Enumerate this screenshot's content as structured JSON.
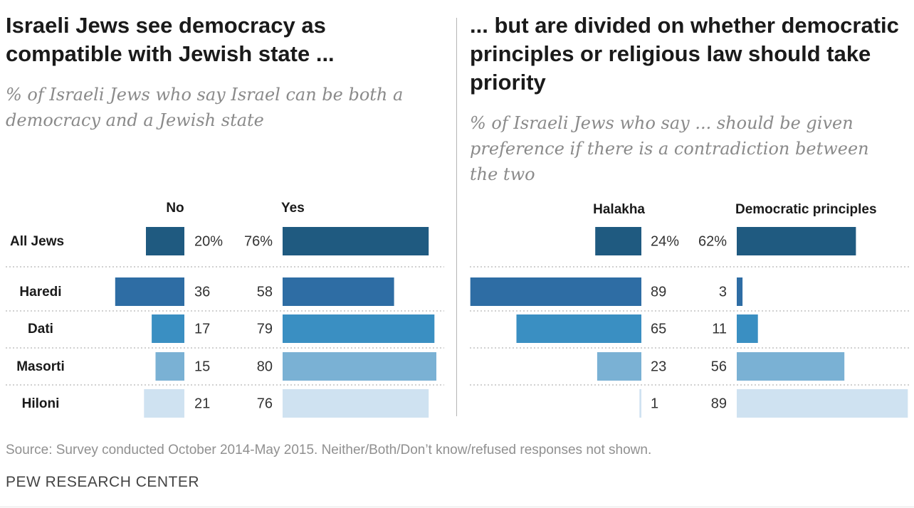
{
  "left_panel": {
    "title": "Israeli Jews see democracy as compatible with Jewish state ...",
    "subtitle": "% of Israeli Jews who say Israel can be both a democracy and a Jewish state"
  },
  "right_panel": {
    "title": "... but are divided on whether democratic principles or religious law should take priority",
    "subtitle": "% of Israeli Jews who say ... should be given preference if there is a contradiction between the two"
  },
  "footer": {
    "source": "Source: Survey conducted October 2014-May 2015. Neither/Both/Don’t know/refused responses not shown.",
    "brand": "PEW RESEARCH CENTER"
  },
  "colors": {
    "all_jews": "#1f5a80",
    "haredi": "#2e6da4",
    "dati": "#3a8fc2",
    "masorti": "#7ab1d4",
    "hiloni": "#cfe2f1"
  },
  "chart_data": [
    {
      "type": "bar",
      "orientation": "horizontal-diverging",
      "categories": [
        "All Jews",
        "Haredi",
        "Dati",
        "Masorti",
        "Hiloni"
      ],
      "series": [
        {
          "name": "No",
          "values": [
            20,
            36,
            17,
            15,
            21
          ]
        },
        {
          "name": "Yes",
          "values": [
            76,
            58,
            79,
            80,
            76
          ]
        }
      ],
      "value_labels": {
        "No": [
          "20%",
          "36",
          "17",
          "15",
          "21"
        ],
        "Yes": [
          "76%",
          "58",
          "79",
          "80",
          "76"
        ]
      }
    },
    {
      "type": "bar",
      "orientation": "horizontal-diverging",
      "categories": [
        "All Jews",
        "Haredi",
        "Dati",
        "Masorti",
        "Hiloni"
      ],
      "series": [
        {
          "name": "Halakha",
          "values": [
            24,
            89,
            65,
            23,
            1
          ]
        },
        {
          "name": "Democratic principles",
          "values": [
            62,
            3,
            11,
            56,
            89
          ]
        }
      ],
      "value_labels": {
        "Halakha": [
          "24%",
          "89",
          "65",
          "23",
          "1"
        ],
        "Democratic principles": [
          "62%",
          "3",
          "11",
          "56",
          "89"
        ]
      }
    }
  ]
}
